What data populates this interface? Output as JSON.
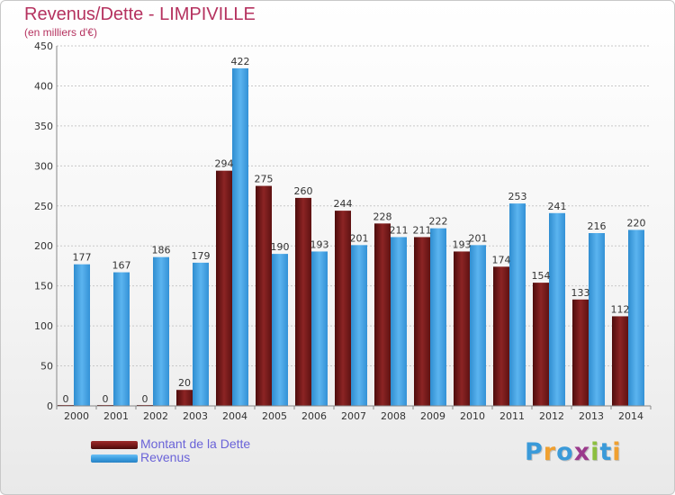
{
  "title": "Revenus/Dette - LIMPIVILLE",
  "subtitle": "(en milliers d'€)",
  "brand": {
    "text": "Proxiti",
    "letters": [
      {
        "ch": "P",
        "color": "#3a9ad9"
      },
      {
        "ch": "r",
        "color": "#f0a030"
      },
      {
        "ch": "o",
        "color": "#3a9ad9"
      },
      {
        "ch": "x",
        "color": "#9b3a8c"
      },
      {
        "ch": "i",
        "color": "#8cbf3f"
      },
      {
        "ch": "t",
        "color": "#3a9ad9"
      },
      {
        "ch": "i",
        "color": "#f0a030"
      }
    ]
  },
  "colors": {
    "dette": "#7a1a1a",
    "revenus": "#3a9ee0",
    "grid": "#c8c8c8",
    "title": "#b5325f",
    "legend_text": "#6a63d8"
  },
  "chart_data": {
    "type": "bar",
    "title": "Revenus/Dette - LIMPIVILLE",
    "subtitle": "(en milliers d'€)",
    "xlabel": "",
    "ylabel": "",
    "categories": [
      "2000",
      "2001",
      "2002",
      "2003",
      "2004",
      "2005",
      "2006",
      "2007",
      "2008",
      "2009",
      "2010",
      "2011",
      "2012",
      "2013",
      "2014"
    ],
    "series": [
      {
        "name": "Montant de la Dette",
        "values": [
          0,
          0,
          0,
          20,
          294,
          275,
          260,
          244,
          228,
          211,
          193,
          174,
          154,
          133,
          112
        ]
      },
      {
        "name": "Revenus",
        "values": [
          177,
          167,
          186,
          179,
          422,
          190,
          193,
          201,
          211,
          222,
          201,
          253,
          241,
          216,
          220
        ]
      }
    ],
    "ylim": [
      0,
      450
    ],
    "yticks": [
      0,
      50,
      100,
      150,
      200,
      250,
      300,
      350,
      400,
      450
    ],
    "grid": "horizontal",
    "legend": "bottom-left"
  }
}
